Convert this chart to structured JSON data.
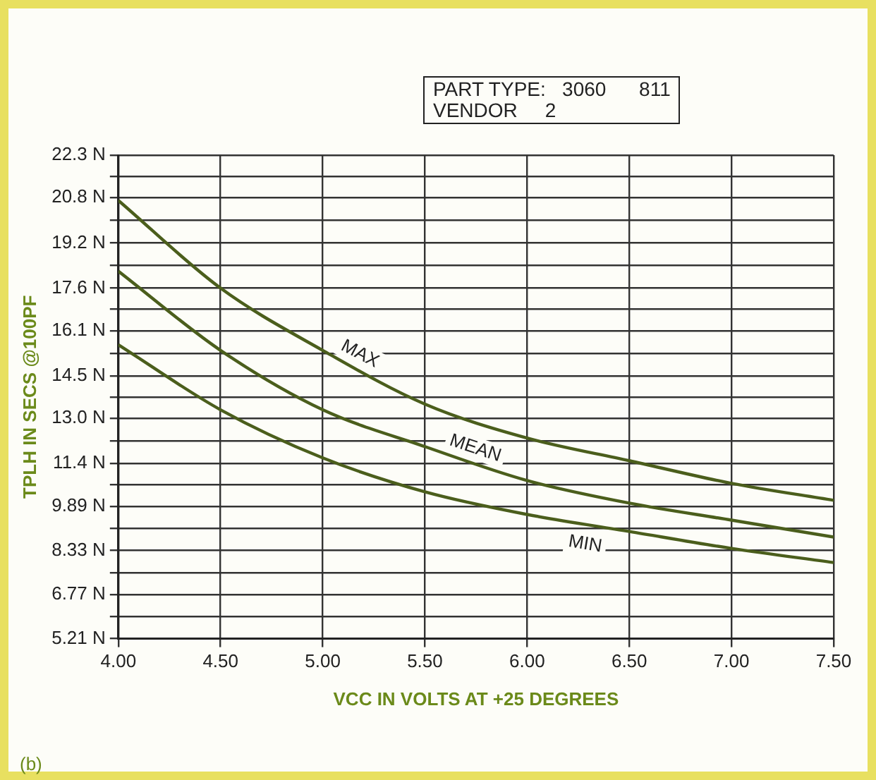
{
  "chart_data": {
    "type": "line",
    "xlabel": "VCC IN VOLTS AT +25 DEGREES",
    "ylabel": "TPLH IN SECS @100PF",
    "annotations": [
      "PART TYPE:   3060      811\nVENDOR     2",
      "(b)"
    ],
    "x": [
      4.0,
      4.5,
      5.0,
      5.5,
      6.0,
      6.5,
      7.0,
      7.5
    ],
    "series": [
      {
        "name": "MAX",
        "color": "#4b5e1c",
        "values": [
          20.7,
          17.6,
          15.4,
          13.5,
          12.3,
          11.5,
          10.7,
          10.1
        ]
      },
      {
        "name": "MEAN",
        "color": "#4b5e1c",
        "values": [
          18.2,
          15.4,
          13.3,
          12.0,
          10.8,
          10.0,
          9.4,
          8.8
        ]
      },
      {
        "name": "MIN",
        "color": "#4b5e1c",
        "values": [
          15.6,
          13.3,
          11.6,
          10.4,
          9.6,
          9.0,
          8.4,
          7.9
        ]
      }
    ],
    "xlim": [
      4.0,
      7.5
    ],
    "xticks": [
      {
        "value": 4.0,
        "label": "4.00"
      },
      {
        "value": 4.5,
        "label": "4.50"
      },
      {
        "value": 5.0,
        "label": "5.00"
      },
      {
        "value": 5.5,
        "label": "5.50"
      },
      {
        "value": 6.0,
        "label": "6.00"
      },
      {
        "value": 6.5,
        "label": "6.50"
      },
      {
        "value": 7.0,
        "label": "7.00"
      },
      {
        "value": 7.5,
        "label": "7.50"
      }
    ],
    "ylim": [
      5.21,
      22.3
    ],
    "yticks": [
      {
        "value": 5.21,
        "label": "5.21 N"
      },
      {
        "value": 5.99,
        "label": null
      },
      {
        "value": 6.77,
        "label": "6.77 N"
      },
      {
        "value": 7.55,
        "label": null
      },
      {
        "value": 8.33,
        "label": "8.33 N"
      },
      {
        "value": 9.11,
        "label": null
      },
      {
        "value": 9.89,
        "label": "9.89 N"
      },
      {
        "value": 10.65,
        "label": null
      },
      {
        "value": 11.4,
        "label": "11.4 N"
      },
      {
        "value": 12.2,
        "label": null
      },
      {
        "value": 13.0,
        "label": "13.0 N"
      },
      {
        "value": 13.75,
        "label": null
      },
      {
        "value": 14.5,
        "label": "14.5 N"
      },
      {
        "value": 15.3,
        "label": null
      },
      {
        "value": 16.1,
        "label": "16.1 N"
      },
      {
        "value": 16.85,
        "label": null
      },
      {
        "value": 17.6,
        "label": "17.6 N"
      },
      {
        "value": 18.4,
        "label": null
      },
      {
        "value": 19.2,
        "label": "19.2 N"
      },
      {
        "value": 20.0,
        "label": null
      },
      {
        "value": 20.8,
        "label": "20.8 N"
      },
      {
        "value": 21.55,
        "label": null
      },
      {
        "value": 22.3,
        "label": "22.3 N"
      }
    ],
    "grid": true,
    "legend": false,
    "marker": "none",
    "line_style": "solid"
  }
}
